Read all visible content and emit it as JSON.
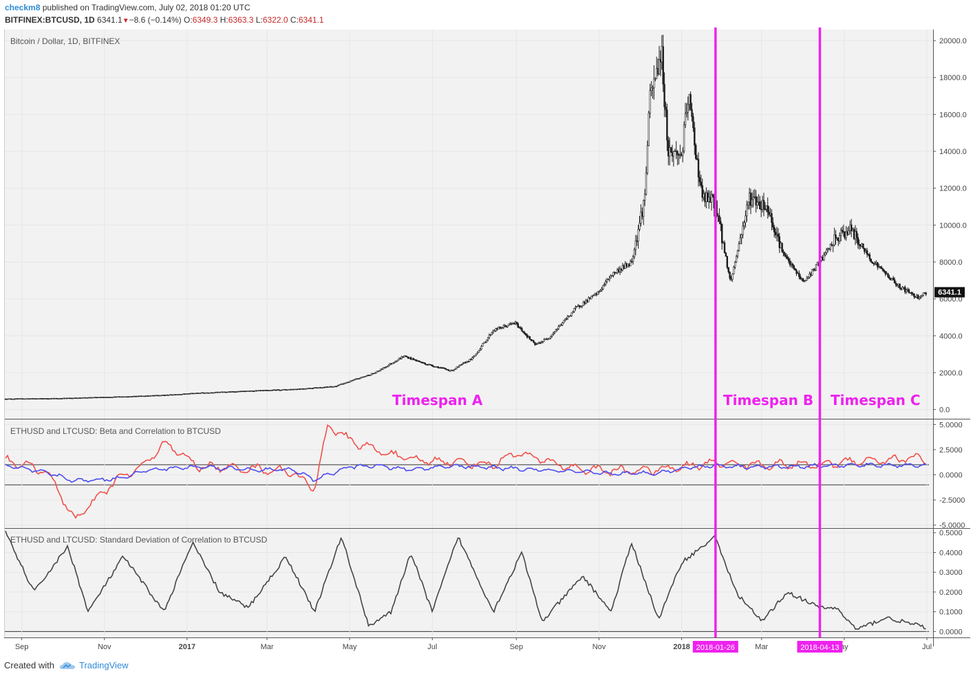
{
  "header": {
    "author": "checkm8",
    "published": "published on TradingView.com, July 02, 2018 01:20 UTC",
    "symbol": "BITFINEX:BTCUSD, 1D",
    "last": "6341.1",
    "change": "−8.6 (−0.14%)",
    "o_label": "O:",
    "o_val": "6349.3",
    "h_label": "H:",
    "h_val": "6363.3",
    "l_label": "L:",
    "l_val": "6322.0",
    "c_label": "C:",
    "c_val": "6341.1",
    "down_arrow_icon": "triangle-down-icon"
  },
  "footer": {
    "created_with": "Created with",
    "brand": "TradingView",
    "logo_icon": "tradingview-cloud-icon"
  },
  "colors": {
    "background": "#ffffff",
    "panel_background": "#f2f2f2",
    "price": "#1a1a1a",
    "beta": "#f0504a",
    "correlation": "#4c4cf0",
    "stddev": "#444444",
    "marker": "#ee22ee"
  },
  "chart_data": [
    {
      "type": "candlestick",
      "title": "Bitcoin / Dollar, 1D, BITFINEX",
      "last_price_label": "6341.1",
      "ylim": [
        -500,
        20600
      ],
      "yticks": [
        "20000.0",
        "18000.0",
        "16000.0",
        "14000.0",
        "12000.0",
        "10000.0",
        "8000.0",
        "6000.0",
        "4000.0",
        "2000.0",
        "0.0"
      ],
      "x": [
        "2016-08-20",
        "2016-10-01",
        "2016-11-15",
        "2016-12-15",
        "2017-01-10",
        "2017-02-15",
        "2017-03-20",
        "2017-04-20",
        "2017-05-20",
        "2017-06-10",
        "2017-06-25",
        "2017-07-15",
        "2017-07-31",
        "2017-08-15",
        "2017-08-31",
        "2017-09-15",
        "2017-09-25",
        "2017-10-15",
        "2017-10-31",
        "2017-11-10",
        "2017-11-25",
        "2017-12-05",
        "2017-12-08",
        "2017-12-17",
        "2017-12-22",
        "2018-01-01",
        "2018-01-06",
        "2018-01-16",
        "2018-01-26",
        "2018-02-06",
        "2018-02-20",
        "2018-03-05",
        "2018-03-18",
        "2018-04-01",
        "2018-04-13",
        "2018-04-24",
        "2018-05-05",
        "2018-05-20",
        "2018-06-10",
        "2018-06-24",
        "2018-07-01"
      ],
      "close": [
        580,
        610,
        700,
        780,
        900,
        1000,
        1100,
        1250,
        2000,
        2900,
        2500,
        2100,
        2800,
        4300,
        4700,
        3500,
        3900,
        5500,
        6300,
        7300,
        8000,
        11600,
        16500,
        19500,
        14000,
        13800,
        17000,
        11500,
        11200,
        6900,
        11500,
        11000,
        8300,
        6900,
        8000,
        9200,
        9800,
        8200,
        6700,
        6100,
        6341.1
      ],
      "annotations": [
        "Timespan A",
        "Timespan B",
        "Timespan C"
      ],
      "markers": [
        "2018-01-26",
        "2018-04-13"
      ]
    },
    {
      "type": "line",
      "title": "ETHUSD and LTCUSD: Beta and Correlation to BTCUSD",
      "ylim": [
        -5.3,
        5.5
      ],
      "yticks": [
        "5.0000",
        "2.5000",
        "0.0000",
        "-2.5000",
        "-5.0000"
      ],
      "hlines": [
        1,
        -1
      ],
      "x": [
        "2016-08-20",
        "2016-09-20",
        "2016-10-10",
        "2016-11-10",
        "2016-12-01",
        "2016-12-15",
        "2017-01-10",
        "2017-02-20",
        "2017-03-20",
        "2017-04-05",
        "2017-04-15",
        "2017-05-01",
        "2017-05-20",
        "2017-06-15",
        "2017-07-15",
        "2017-08-15",
        "2017-08-31",
        "2017-10-15",
        "2017-11-15",
        "2017-12-15",
        "2018-01-10",
        "2018-01-26",
        "2018-02-20",
        "2018-03-20",
        "2018-04-13",
        "2018-05-10",
        "2018-06-10",
        "2018-06-25",
        "2018-07-01"
      ],
      "series": [
        {
          "values": [
            1.5,
            0.3,
            -4.5,
            -0.5,
            1.0,
            3.2,
            0.8,
            0.6,
            0.3,
            -1.5,
            5.0,
            3.4,
            2.5,
            1.5,
            1.3,
            1.0,
            2.2,
            0.6,
            0.4,
            0.5,
            0.9,
            1.2,
            1.0,
            1.0,
            1.0,
            1.4,
            1.5,
            1.8,
            1.2
          ]
        },
        {
          "values": [
            0.9,
            0.2,
            -0.6,
            -0.4,
            0.4,
            0.6,
            0.8,
            0.5,
            0.5,
            -0.5,
            0.0,
            0.8,
            0.9,
            0.5,
            0.9,
            0.7,
            0.6,
            0.3,
            0.1,
            0.2,
            0.8,
            0.9,
            0.8,
            0.8,
            0.9,
            0.95,
            0.95,
            0.95,
            0.95
          ]
        }
      ]
    },
    {
      "type": "line",
      "title": "ETHUSD and LTCUSD: Standard Deviation of Correlation to BTCUSD",
      "ylim": [
        -0.03,
        0.52
      ],
      "yticks": [
        "0.5000",
        "0.4000",
        "0.3000",
        "0.2000",
        "0.1000",
        "0.0000"
      ],
      "hlines": [
        0
      ],
      "x": [
        "2016-08-20",
        "2016-09-10",
        "2016-10-05",
        "2016-10-20",
        "2016-11-15",
        "2016-12-15",
        "2017-01-05",
        "2017-01-25",
        "2017-02-15",
        "2017-03-15",
        "2017-04-05",
        "2017-04-25",
        "2017-05-15",
        "2017-06-01",
        "2017-06-15",
        "2017-07-01",
        "2017-07-20",
        "2017-08-15",
        "2017-09-05",
        "2017-09-20",
        "2017-10-20",
        "2017-11-10",
        "2017-11-25",
        "2017-12-15",
        "2018-01-01",
        "2018-01-26",
        "2018-02-10",
        "2018-03-01",
        "2018-03-20",
        "2018-04-13",
        "2018-04-25",
        "2018-05-10",
        "2018-06-01",
        "2018-07-01"
      ],
      "series": [
        {
          "values": [
            0.5,
            0.2,
            0.43,
            0.1,
            0.38,
            0.1,
            0.45,
            0.2,
            0.12,
            0.38,
            0.1,
            0.48,
            0.03,
            0.1,
            0.4,
            0.1,
            0.48,
            0.1,
            0.4,
            0.05,
            0.28,
            0.1,
            0.45,
            0.06,
            0.35,
            0.48,
            0.2,
            0.05,
            0.2,
            0.12,
            0.12,
            0.01,
            0.07,
            0.02
          ]
        }
      ]
    }
  ],
  "x_axis": {
    "ticks": [
      {
        "label": "Sep",
        "date": "2016-09-01",
        "bold": false
      },
      {
        "label": "Nov",
        "date": "2016-11-01",
        "bold": false
      },
      {
        "label": "2017",
        "date": "2017-01-01",
        "bold": true
      },
      {
        "label": "Mar",
        "date": "2017-03-01",
        "bold": false
      },
      {
        "label": "May",
        "date": "2017-05-01",
        "bold": false
      },
      {
        "label": "Jul",
        "date": "2017-07-01",
        "bold": false
      },
      {
        "label": "Sep",
        "date": "2017-09-01",
        "bold": false
      },
      {
        "label": "Nov",
        "date": "2017-11-01",
        "bold": false
      },
      {
        "label": "2018",
        "date": "2018-01-01",
        "bold": true
      },
      {
        "label": "Mar",
        "date": "2018-03-01",
        "bold": false
      },
      {
        "label": "ay",
        "date": "2018-05-01",
        "bold": false
      },
      {
        "label": "Jul",
        "date": "2018-07-01",
        "bold": false
      }
    ],
    "marker_labels": [
      "2018-01-26",
      "2018-04-13"
    ]
  }
}
